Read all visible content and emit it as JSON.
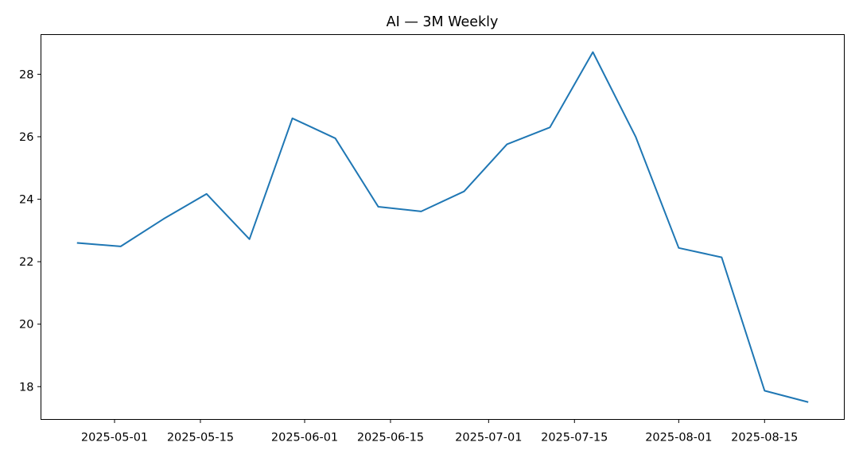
{
  "chart_data": {
    "type": "line",
    "title": "AI — 3M Weekly",
    "xlabel": "",
    "ylabel": "",
    "x": [
      "2025-04-25",
      "2025-05-02",
      "2025-05-09",
      "2025-05-16",
      "2025-05-23",
      "2025-05-30",
      "2025-06-06",
      "2025-06-13",
      "2025-06-20",
      "2025-06-27",
      "2025-07-04",
      "2025-07-11",
      "2025-07-18",
      "2025-07-25",
      "2025-08-01",
      "2025-08-08",
      "2025-08-15",
      "2025-08-22"
    ],
    "series": [
      {
        "values": [
          22.6,
          22.49,
          23.37,
          24.17,
          22.72,
          26.59,
          25.95,
          23.76,
          23.61,
          24.25,
          25.76,
          26.3,
          28.71,
          25.99,
          22.44,
          22.14,
          17.87,
          17.51
        ],
        "color": "#1f77b4"
      }
    ],
    "xlim": [
      "2025-04-19",
      "2025-08-28"
    ],
    "ylim": [
      16.95,
      29.27
    ],
    "xticks": [
      "2025-05-01",
      "2025-05-15",
      "2025-06-01",
      "2025-06-15",
      "2025-07-01",
      "2025-07-15",
      "2025-08-01",
      "2025-08-15"
    ],
    "yticks": [
      18,
      20,
      22,
      24,
      26,
      28
    ],
    "grid": false,
    "legend": "none"
  }
}
